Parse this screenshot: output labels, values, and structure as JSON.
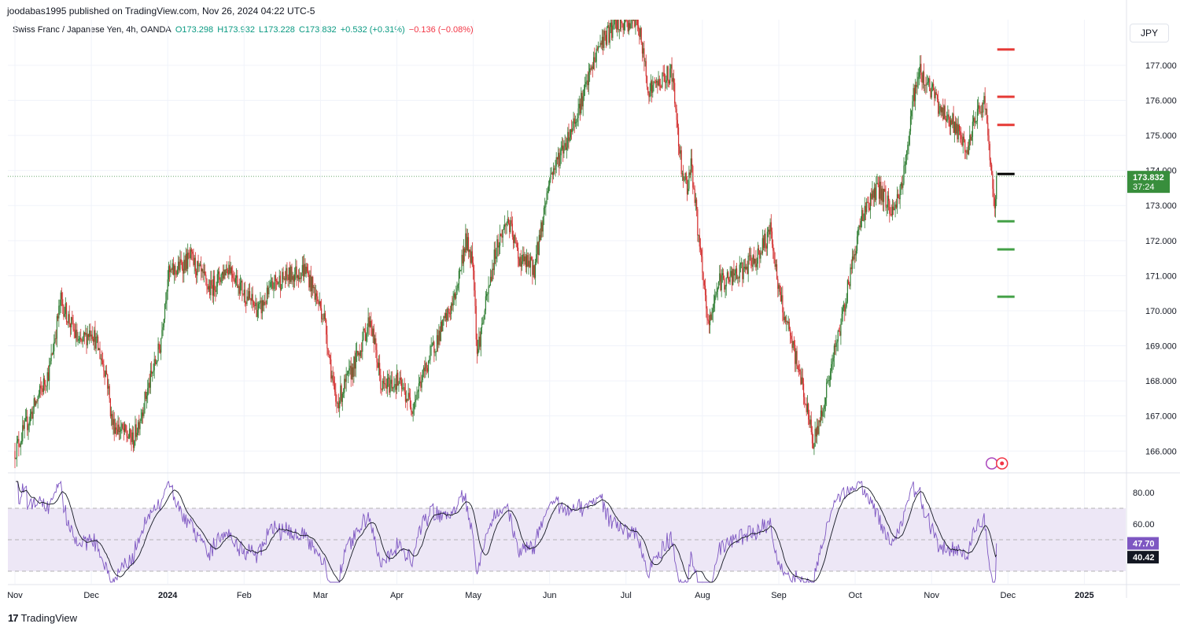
{
  "header": {
    "publisher_line": "joodabas1995 published on TradingView.com, Nov 26, 2024 04:22 UTC-5"
  },
  "legend": {
    "symbol": "Swiss Franc / Japanese Yen, 4h, OANDA",
    "open": "O173.298",
    "high": "H173.932",
    "low": "L173.228",
    "close": "C173.832",
    "change": "+0.532 (+0.31%)",
    "secondary_change": "−0.136 (−0.08%)"
  },
  "currency_button": "JPY",
  "footer": {
    "brand": "TradingView",
    "logo_glyph": "17"
  },
  "colors": {
    "up": "#089981",
    "down": "#f23645",
    "bull_candle": "#2e7d32",
    "bear_candle": "#d32f2f",
    "rsi_line": "#7e57c2",
    "rsi_ma": "#131722",
    "rsi_band": "#ede7f6",
    "price_tag": "#388e3c",
    "level_red": "#e53935",
    "level_green": "#43a047"
  },
  "chart_data": [
    {
      "type": "candlestick",
      "symbol": "CHF/JPY",
      "timeframe": "4h",
      "ylim": [
        165.4,
        178.3
      ],
      "y_ticks": [
        "177.000",
        "176.000",
        "175.000",
        "174.000",
        "173.000",
        "172.000",
        "171.000",
        "170.000",
        "169.000",
        "168.000",
        "167.000",
        "166.000"
      ],
      "x_ticks": [
        "Nov",
        "Dec",
        "2024",
        "Feb",
        "Mar",
        "Apr",
        "May",
        "Jun",
        "Jul",
        "Aug",
        "Sep",
        "Oct",
        "Nov",
        "Dec",
        "2025"
      ],
      "last_price": "173.832",
      "countdown": "37:24",
      "anchors": [
        {
          "m": 0.0,
          "p": 166.0
        },
        {
          "m": 0.2,
          "p": 167.0
        },
        {
          "m": 0.45,
          "p": 168.3
        },
        {
          "m": 0.6,
          "p": 170.3
        },
        {
          "m": 0.85,
          "p": 169.0
        },
        {
          "m": 1.0,
          "p": 169.5
        },
        {
          "m": 1.2,
          "p": 168.2
        },
        {
          "m": 1.27,
          "p": 166.8
        },
        {
          "m": 1.55,
          "p": 166.3
        },
        {
          "m": 1.9,
          "p": 169.0
        },
        {
          "m": 2.0,
          "p": 171.0
        },
        {
          "m": 2.3,
          "p": 171.5
        },
        {
          "m": 2.55,
          "p": 170.6
        },
        {
          "m": 2.8,
          "p": 171.3
        },
        {
          "m": 3.0,
          "p": 170.5
        },
        {
          "m": 3.2,
          "p": 170.0
        },
        {
          "m": 3.4,
          "p": 170.8
        },
        {
          "m": 3.8,
          "p": 171.2
        },
        {
          "m": 4.05,
          "p": 169.8
        },
        {
          "m": 4.2,
          "p": 167.3
        },
        {
          "m": 4.45,
          "p": 168.5
        },
        {
          "m": 4.65,
          "p": 169.8
        },
        {
          "m": 4.8,
          "p": 167.8
        },
        {
          "m": 5.0,
          "p": 168.0
        },
        {
          "m": 5.2,
          "p": 167.3
        },
        {
          "m": 5.45,
          "p": 168.8
        },
        {
          "m": 5.75,
          "p": 170.3
        },
        {
          "m": 5.9,
          "p": 172.0
        },
        {
          "m": 6.0,
          "p": 171.4
        },
        {
          "m": 6.05,
          "p": 168.8
        },
        {
          "m": 6.3,
          "p": 171.8
        },
        {
          "m": 6.45,
          "p": 172.6
        },
        {
          "m": 6.6,
          "p": 171.5
        },
        {
          "m": 6.8,
          "p": 171.2
        },
        {
          "m": 7.0,
          "p": 173.8
        },
        {
          "m": 7.25,
          "p": 175.0
        },
        {
          "m": 7.45,
          "p": 176.2
        },
        {
          "m": 7.65,
          "p": 177.6
        },
        {
          "m": 7.85,
          "p": 178.1
        },
        {
          "m": 8.0,
          "p": 178.2
        },
        {
          "m": 8.15,
          "p": 178.3
        },
        {
          "m": 8.3,
          "p": 176.3
        },
        {
          "m": 8.6,
          "p": 176.8
        },
        {
          "m": 8.72,
          "p": 174.2
        },
        {
          "m": 8.8,
          "p": 173.5
        },
        {
          "m": 8.85,
          "p": 174.3
        },
        {
          "m": 9.0,
          "p": 171.0
        },
        {
          "m": 9.08,
          "p": 169.5
        },
        {
          "m": 9.2,
          "p": 170.8
        },
        {
          "m": 9.45,
          "p": 171.0
        },
        {
          "m": 9.7,
          "p": 171.5
        },
        {
          "m": 9.9,
          "p": 172.3
        },
        {
          "m": 10.0,
          "p": 170.5
        },
        {
          "m": 10.15,
          "p": 169.2
        },
        {
          "m": 10.3,
          "p": 168.0
        },
        {
          "m": 10.45,
          "p": 166.2
        },
        {
          "m": 10.55,
          "p": 167.0
        },
        {
          "m": 10.8,
          "p": 169.5
        },
        {
          "m": 11.0,
          "p": 171.8
        },
        {
          "m": 11.1,
          "p": 172.8
        },
        {
          "m": 11.3,
          "p": 173.5
        },
        {
          "m": 11.5,
          "p": 172.8
        },
        {
          "m": 11.65,
          "p": 174.0
        },
        {
          "m": 11.75,
          "p": 176.0
        },
        {
          "m": 11.85,
          "p": 176.8
        },
        {
          "m": 12.0,
          "p": 176.3
        },
        {
          "m": 12.1,
          "p": 175.8
        },
        {
          "m": 12.3,
          "p": 175.3
        },
        {
          "m": 12.45,
          "p": 174.5
        },
        {
          "m": 12.6,
          "p": 175.6
        },
        {
          "m": 12.7,
          "p": 176.0
        },
        {
          "m": 12.78,
          "p": 173.8
        },
        {
          "m": 12.82,
          "p": 172.9
        },
        {
          "m": 12.86,
          "p": 173.8
        }
      ],
      "levels": [
        {
          "price": 177.45,
          "color": "red"
        },
        {
          "price": 176.1,
          "color": "red"
        },
        {
          "price": 175.3,
          "color": "red"
        },
        {
          "price": 173.9,
          "color": "black"
        },
        {
          "price": 172.55,
          "color": "green"
        },
        {
          "price": 171.75,
          "color": "green"
        },
        {
          "price": 170.4,
          "color": "green"
        }
      ]
    },
    {
      "type": "line",
      "indicator": "RSI",
      "ylim": [
        22,
        88
      ],
      "y_ticks": [
        "80.00",
        "60.00"
      ],
      "band": [
        30,
        70
      ],
      "middle": 50,
      "rsi_value": "47.70",
      "ma_value": "40.42"
    }
  ]
}
